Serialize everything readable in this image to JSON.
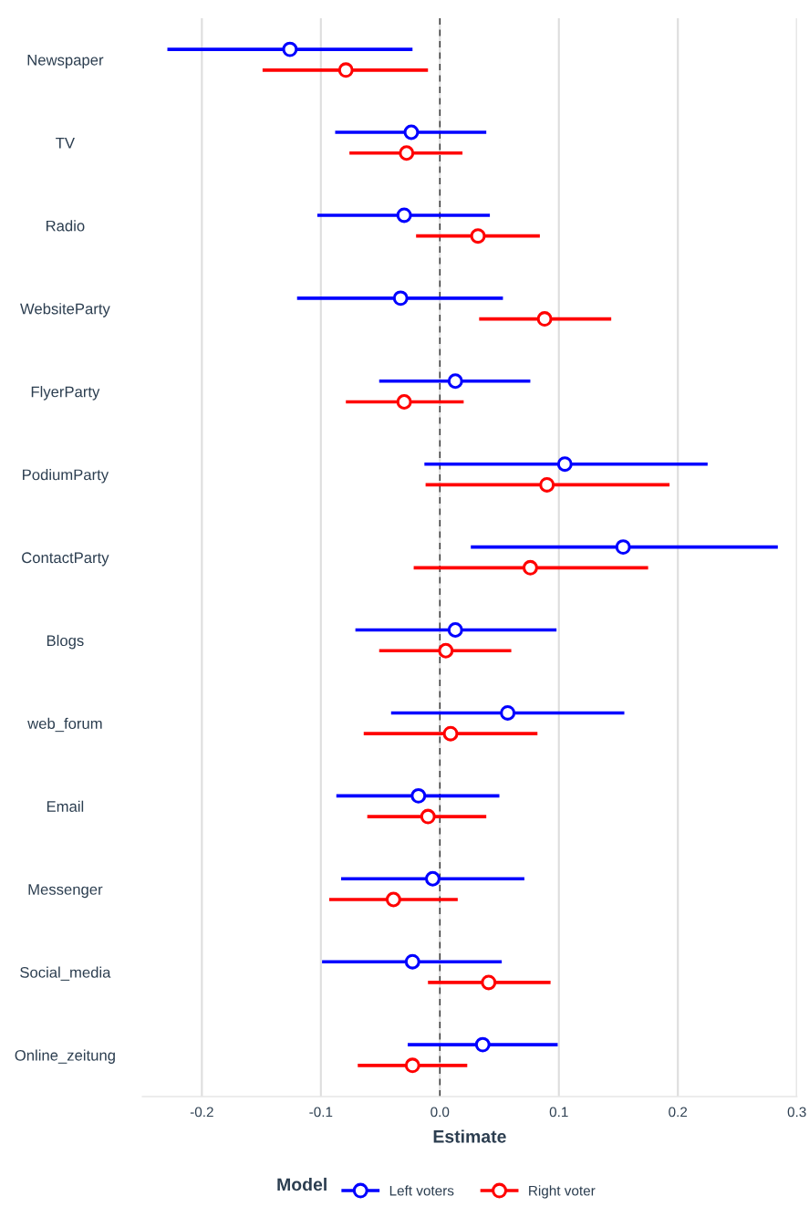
{
  "chart_data": {
    "type": "scatter",
    "orientation": "horizontal",
    "xlabel": "Estimate",
    "legend_title": "Model",
    "legend": "bottom",
    "grid": "x",
    "marker": "circle",
    "categories": [
      "Newspaper",
      "TV",
      "Radio",
      "WebsiteParty",
      "FlyerParty",
      "PodiumParty",
      "ContactParty",
      "Blogs",
      "web_forum",
      "Email",
      "Messenger",
      "Social_media",
      "Online_zeitung"
    ],
    "xlim": [
      -0.25,
      0.3
    ],
    "xticks": [
      -0.2,
      -0.1,
      {
        "value": 0,
        "label": "0.0"
      },
      0.1,
      0.2,
      0.3
    ],
    "ref_lines": [
      {
        "axis": "x",
        "value": 0,
        "color": "#333333",
        "line_style": "dashed"
      }
    ],
    "series": [
      {
        "name": "Left voters",
        "color": "#0000ff",
        "values": [
          -0.126,
          -0.024,
          -0.03,
          -0.033,
          0.013,
          0.105,
          0.154,
          0.013,
          0.057,
          -0.018,
          -0.006,
          -0.023,
          0.036
        ],
        "errors": [
          [
            -0.229,
            -0.023
          ],
          [
            -0.088,
            0.039
          ],
          [
            -0.103,
            0.042
          ],
          [
            -0.12,
            0.053
          ],
          [
            -0.051,
            0.076
          ],
          [
            -0.013,
            0.225
          ],
          [
            0.026,
            0.284
          ],
          [
            -0.071,
            0.098
          ],
          [
            -0.041,
            0.155
          ],
          [
            -0.087,
            0.05
          ],
          [
            -0.083,
            0.071
          ],
          [
            -0.099,
            0.052
          ],
          [
            -0.027,
            0.099
          ]
        ]
      },
      {
        "name": "Right voter",
        "color": "#ff0000",
        "values": [
          -0.079,
          -0.028,
          0.032,
          0.088,
          -0.03,
          0.09,
          0.076,
          0.005,
          0.009,
          -0.01,
          -0.039,
          0.041,
          -0.023
        ],
        "errors": [
          [
            -0.149,
            -0.01
          ],
          [
            -0.076,
            0.019
          ],
          [
            -0.02,
            0.084
          ],
          [
            0.033,
            0.144
          ],
          [
            -0.079,
            0.02
          ],
          [
            -0.012,
            0.193
          ],
          [
            -0.022,
            0.175
          ],
          [
            -0.051,
            0.06
          ],
          [
            -0.064,
            0.082
          ],
          [
            -0.061,
            0.039
          ],
          [
            -0.093,
            0.015
          ],
          [
            -0.01,
            0.093
          ],
          [
            -0.069,
            0.023
          ]
        ]
      }
    ]
  }
}
